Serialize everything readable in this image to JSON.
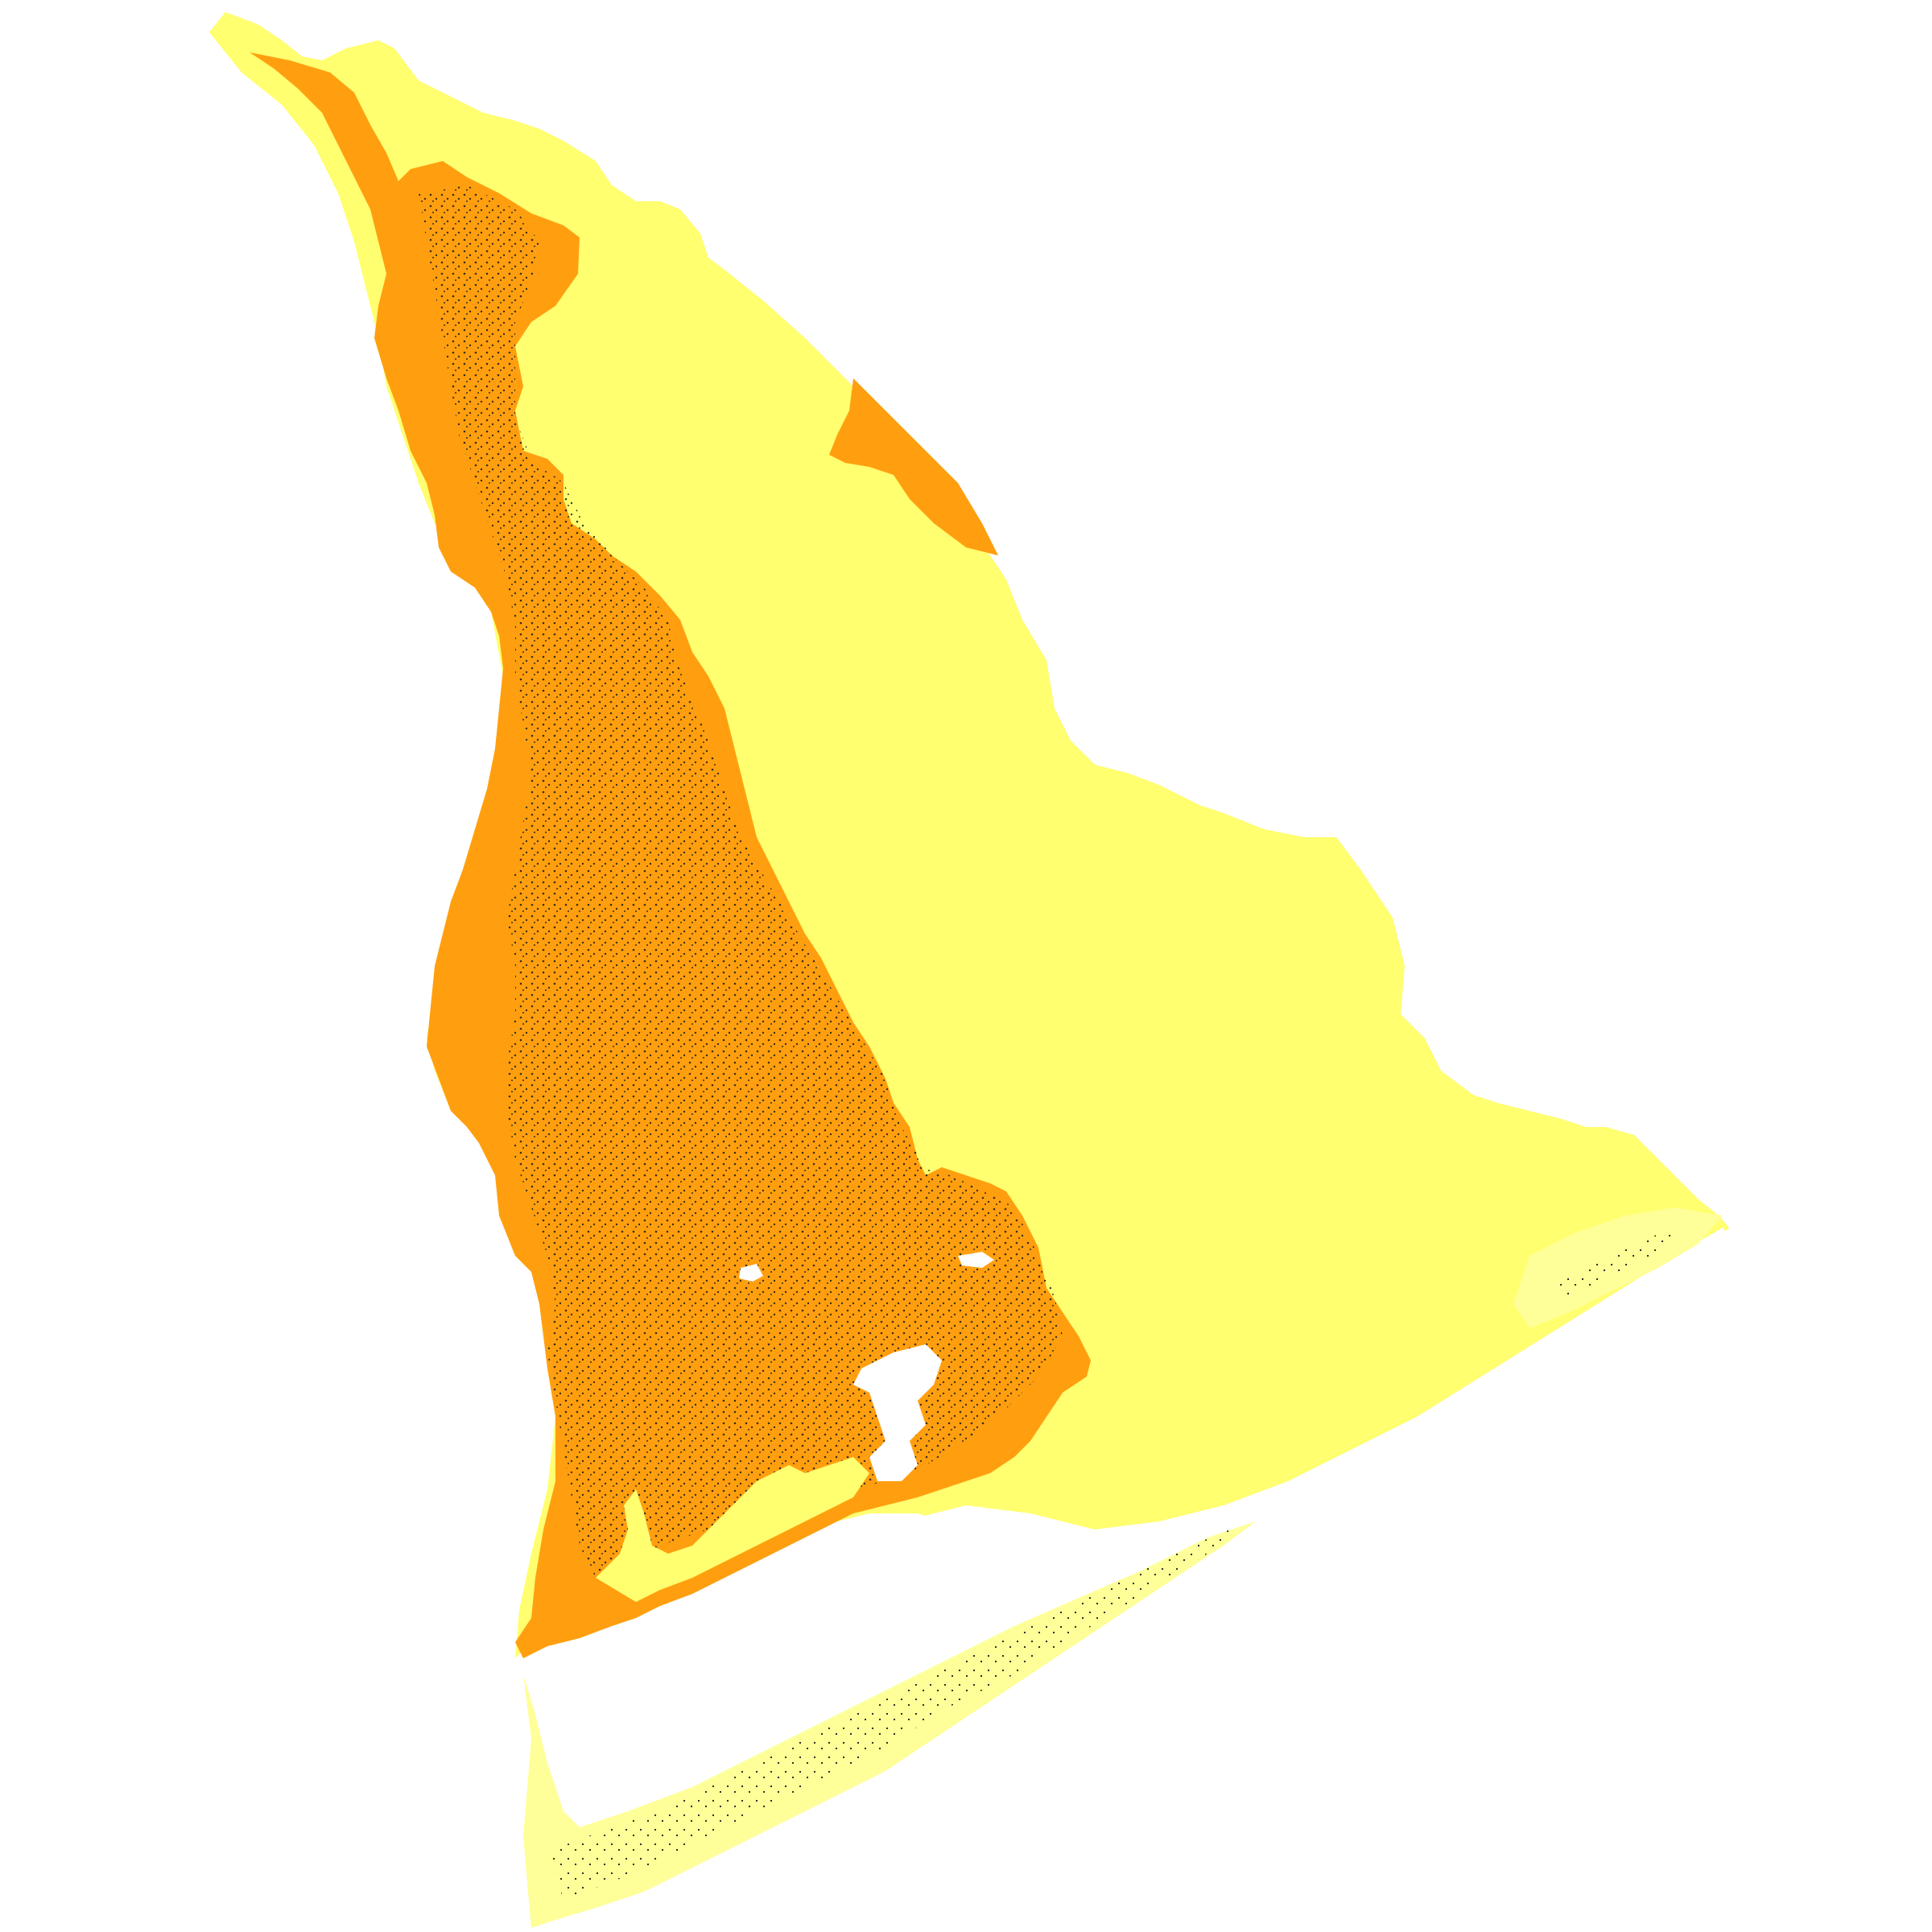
{
  "map": {
    "colors": {
      "background": "#ffffff",
      "yellow_zone": "#ffff70",
      "orange_zone": "#ff9f0f",
      "barrier_sand": "#ffff99",
      "water": "#ffffff",
      "stipple": "#1a1a1a"
    },
    "regions": [
      {
        "name": "yellow-zone",
        "fill_key": "yellow_zone"
      },
      {
        "name": "orange-zone",
        "fill_key": "orange_zone"
      },
      {
        "name": "barrier-island",
        "fill_key": "barrier_sand"
      },
      {
        "name": "bay-water",
        "fill_key": "water"
      }
    ]
  }
}
